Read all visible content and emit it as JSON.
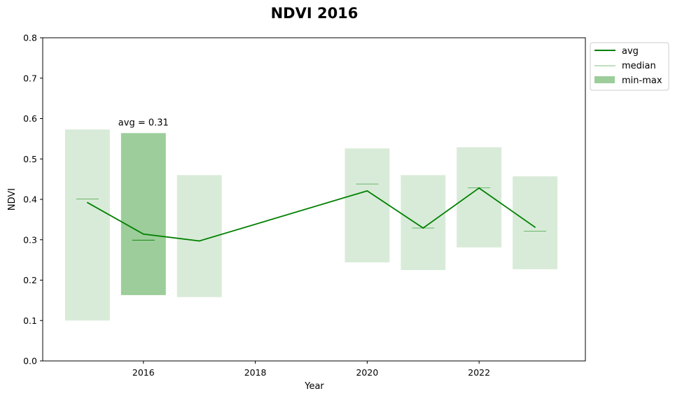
{
  "chart_data": {
    "type": "bar",
    "title": "NDVI 2016",
    "xlabel": "Year",
    "ylabel": "NDVI",
    "xlim": [
      2014.2,
      2023.9
    ],
    "ylim": [
      0,
      0.8
    ],
    "x_ticks": [
      2016,
      2018,
      2020,
      2022
    ],
    "y_ticks": [
      0.0,
      0.1,
      0.2,
      0.3,
      0.4,
      0.5,
      0.6,
      0.7,
      0.8
    ],
    "x_tick_labels": [
      "2016",
      "2018",
      "2020",
      "2022"
    ],
    "y_tick_labels": [
      "0.0",
      "0.1",
      "0.2",
      "0.3",
      "0.4",
      "0.5",
      "0.6",
      "0.7",
      "0.8"
    ],
    "grid": false,
    "legend_placement": "outside-top-right",
    "highlight_year": 2016,
    "years": [
      2015,
      2016,
      2017,
      2020,
      2021,
      2022,
      2023
    ],
    "series": [
      {
        "name": "avg",
        "kind": "line",
        "color": "#008000",
        "values": [
          0.392,
          0.314,
          0.297,
          0.421,
          0.329,
          0.428,
          0.331
        ]
      },
      {
        "name": "median",
        "kind": "tick",
        "color": "#008000",
        "values": [
          0.401,
          0.299,
          null,
          0.438,
          0.329,
          0.429,
          0.321
        ]
      },
      {
        "name": "min-max",
        "kind": "range",
        "min": [
          0.1,
          0.163,
          0.158,
          0.244,
          0.225,
          0.281,
          0.227
        ],
        "max": [
          0.573,
          0.564,
          0.46,
          0.526,
          0.46,
          0.529,
          0.457
        ]
      }
    ],
    "colors": {
      "line": "#008000",
      "bar": "#d8ebd8",
      "bar_highlight": "#9ccd9a"
    },
    "annotation": {
      "text": "avg = 0.31",
      "year": 2016,
      "value": 0.564
    }
  }
}
